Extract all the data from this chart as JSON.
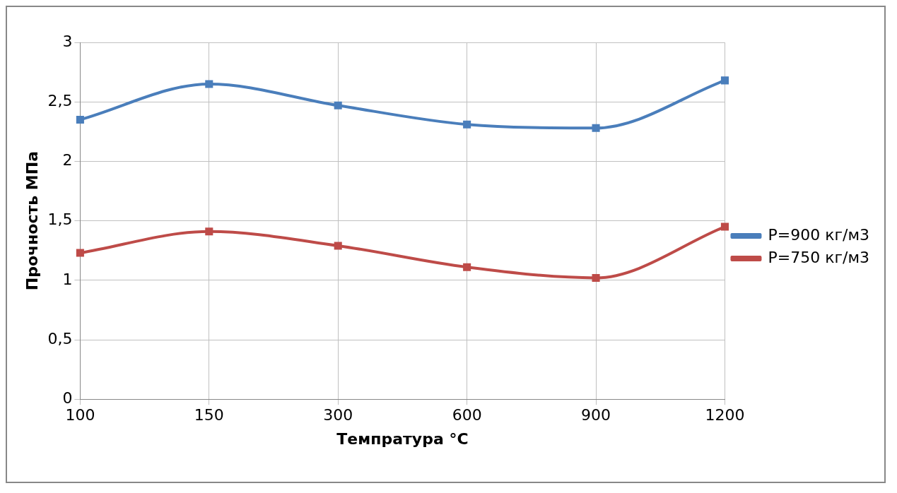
{
  "chart_data": {
    "type": "line",
    "xlabel": "Темпратура °C",
    "ylabel": "Прочность МПа",
    "categories": [
      "100",
      "150",
      "300",
      "600",
      "900",
      "1200"
    ],
    "series": [
      {
        "name": "P=900 кг/м3",
        "color": "#4a7ebb",
        "values": [
          2.35,
          2.65,
          2.47,
          2.31,
          2.28,
          2.68
        ]
      },
      {
        "name": "P=750 кг/м3",
        "color": "#be4b48",
        "values": [
          1.23,
          1.41,
          1.29,
          1.11,
          1.02,
          1.45
        ]
      }
    ],
    "ylim": [
      0,
      3
    ],
    "yticks": [
      0,
      {
        "value": 0.5,
        "label": "0,5"
      },
      1,
      {
        "value": 1.5,
        "label": "1,5"
      },
      2,
      {
        "value": 2.5,
        "label": "2,5"
      },
      3
    ],
    "grid": true,
    "legend": "right",
    "marker": "square",
    "line_style": "solid"
  }
}
